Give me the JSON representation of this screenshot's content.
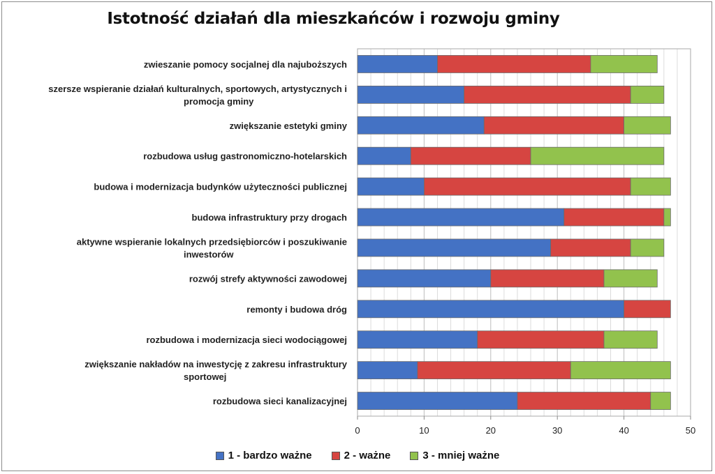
{
  "chart_data": {
    "type": "bar",
    "orientation": "horizontal",
    "stacked": true,
    "title": "Istotność działań dla mieszkańców i rozwoju gminy",
    "categories": [
      "zwieszanie pomocy socjalnej dla najuboższych",
      "szersze wspieranie działań kulturalnych, sportowych, artystycznych i promocja gminy",
      "zwiększanie estetyki gminy",
      "rozbudowa usług gastronomiczno-hotelarskich",
      "budowa i modernizacja budynków użyteczności publicznej",
      "budowa infrastruktury przy drogach",
      "aktywne wspieranie lokalnych przedsiębiorców i poszukiwanie inwestorów",
      "rozwój strefy aktywności zawodowej",
      "remonty i budowa dróg",
      "rozbudowa i modernizacja sieci wodociągowej",
      "zwiększanie nakładów na inwestycję z zakresu infrastruktury sportowej",
      "rozbudowa sieci kanalizacyjnej"
    ],
    "series": [
      {
        "name": "1 - bardzo ważne",
        "color": "#4472c4",
        "values": [
          12,
          16,
          19,
          8,
          10,
          31,
          29,
          20,
          40,
          18,
          9,
          24
        ]
      },
      {
        "name": "2 - ważne",
        "color": "#d64541",
        "values": [
          23,
          25,
          21,
          18,
          31,
          15,
          12,
          17,
          7,
          19,
          23,
          20
        ]
      },
      {
        "name": "3 - mniej ważne",
        "color": "#92c24d",
        "values": [
          10,
          5,
          7,
          20,
          6,
          1,
          5,
          8,
          0,
          8,
          15,
          3
        ]
      }
    ],
    "xlim": [
      0,
      50
    ],
    "xticks": [
      "0",
      "10",
      "20",
      "30",
      "40",
      "50"
    ],
    "grid": true,
    "legend_position": "bottom"
  }
}
